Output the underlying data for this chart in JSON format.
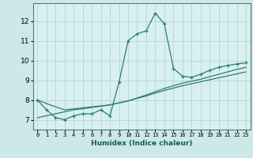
{
  "xlabel": "Humidex (Indice chaleur)",
  "bg_color": "#cce8e8",
  "plot_bg_color": "#d8f0f0",
  "line_color": "#2e7d6e",
  "grid_color": "#b8d4d4",
  "x_data": [
    0,
    1,
    2,
    3,
    4,
    5,
    6,
    7,
    8,
    9,
    10,
    11,
    12,
    13,
    14,
    15,
    16,
    17,
    18,
    19,
    20,
    21,
    22,
    23
  ],
  "y_curve": [
    8.0,
    7.5,
    7.1,
    7.0,
    7.2,
    7.3,
    7.3,
    7.5,
    7.2,
    8.9,
    11.0,
    11.35,
    11.5,
    12.4,
    11.85,
    9.6,
    9.2,
    9.15,
    9.3,
    9.5,
    9.65,
    9.75,
    9.82,
    9.88
  ],
  "y_linear1": [
    8.0,
    7.82,
    7.65,
    7.5,
    7.55,
    7.6,
    7.65,
    7.7,
    7.75,
    7.85,
    7.95,
    8.1,
    8.25,
    8.42,
    8.58,
    8.72,
    8.85,
    8.95,
    9.05,
    9.18,
    9.3,
    9.42,
    9.55,
    9.65
  ],
  "y_linear2": [
    7.1,
    7.2,
    7.3,
    7.4,
    7.5,
    7.55,
    7.62,
    7.68,
    7.75,
    7.85,
    7.95,
    8.08,
    8.2,
    8.35,
    8.48,
    8.6,
    8.72,
    8.82,
    8.92,
    9.02,
    9.12,
    9.22,
    9.32,
    9.42
  ],
  "ylim": [
    6.5,
    12.9
  ],
  "xlim": [
    -0.5,
    23.5
  ],
  "yticks": [
    7,
    8,
    9,
    10,
    11,
    12
  ],
  "xticks": [
    0,
    1,
    2,
    3,
    4,
    5,
    6,
    7,
    8,
    9,
    10,
    11,
    12,
    13,
    14,
    15,
    16,
    17,
    18,
    19,
    20,
    21,
    22,
    23
  ],
  "xtick_labels": [
    "0",
    "1",
    "2",
    "3",
    "4",
    "5",
    "6",
    "7",
    "8",
    "9",
    "10",
    "11",
    "12",
    "13",
    "14",
    "15",
    "16",
    "17",
    "18",
    "19",
    "20",
    "21",
    "22",
    "23"
  ]
}
